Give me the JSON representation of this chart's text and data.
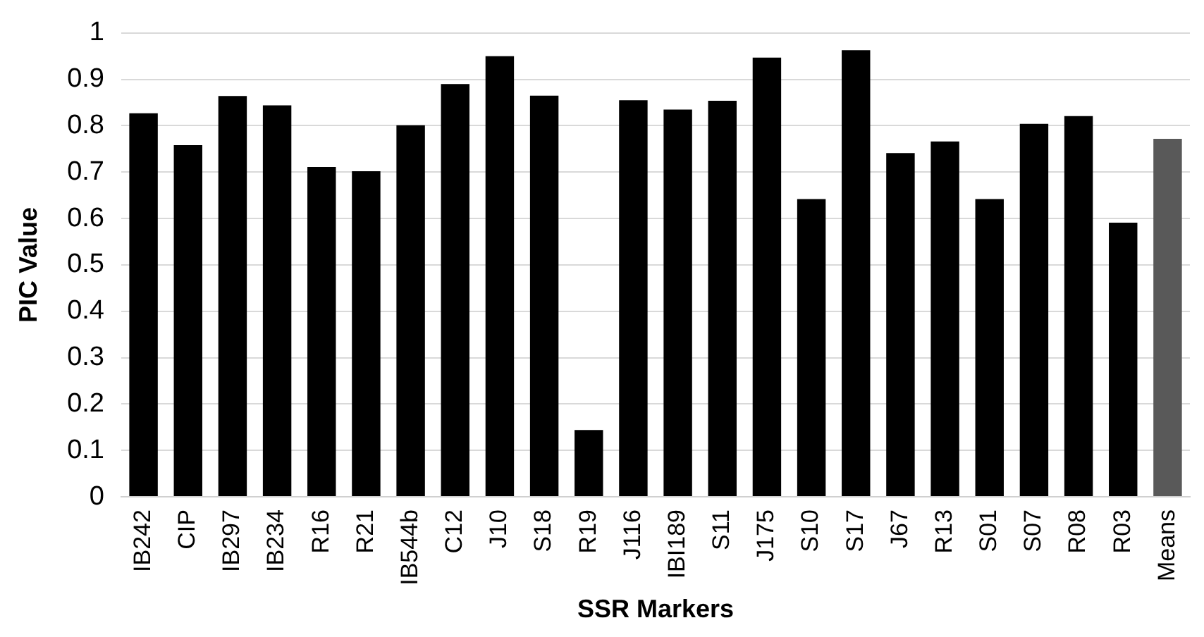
{
  "chart_data": {
    "type": "bar",
    "xlabel": "SSR Markers",
    "ylabel": "PIC Value",
    "categories": [
      "IB242",
      "CIP",
      "IB297",
      "IB234",
      "R16",
      "R21",
      "IB544b",
      "C12",
      "J10",
      "S18",
      "R19",
      "J116",
      "IBI189",
      "S11",
      "J175",
      "S10",
      "S17",
      "J67",
      "R13",
      "S01",
      "S07",
      "R08",
      "R03",
      "Means"
    ],
    "values": [
      0.827,
      0.758,
      0.864,
      0.844,
      0.711,
      0.702,
      0.801,
      0.89,
      0.95,
      0.865,
      0.144,
      0.855,
      0.835,
      0.854,
      0.947,
      0.642,
      0.963,
      0.741,
      0.766,
      0.642,
      0.804,
      0.821,
      0.591,
      0.772
    ],
    "colors": [
      "#000000",
      "#000000",
      "#000000",
      "#000000",
      "#000000",
      "#000000",
      "#000000",
      "#000000",
      "#000000",
      "#000000",
      "#000000",
      "#000000",
      "#000000",
      "#000000",
      "#000000",
      "#000000",
      "#000000",
      "#000000",
      "#000000",
      "#000000",
      "#000000",
      "#000000",
      "#000000",
      "#595959"
    ],
    "ylim": [
      0,
      1
    ],
    "yticks": [
      0,
      0.1,
      0.2,
      0.3,
      0.4,
      0.5,
      0.6,
      0.7,
      0.8,
      0.9,
      1
    ],
    "grid": "y",
    "legend": false
  }
}
